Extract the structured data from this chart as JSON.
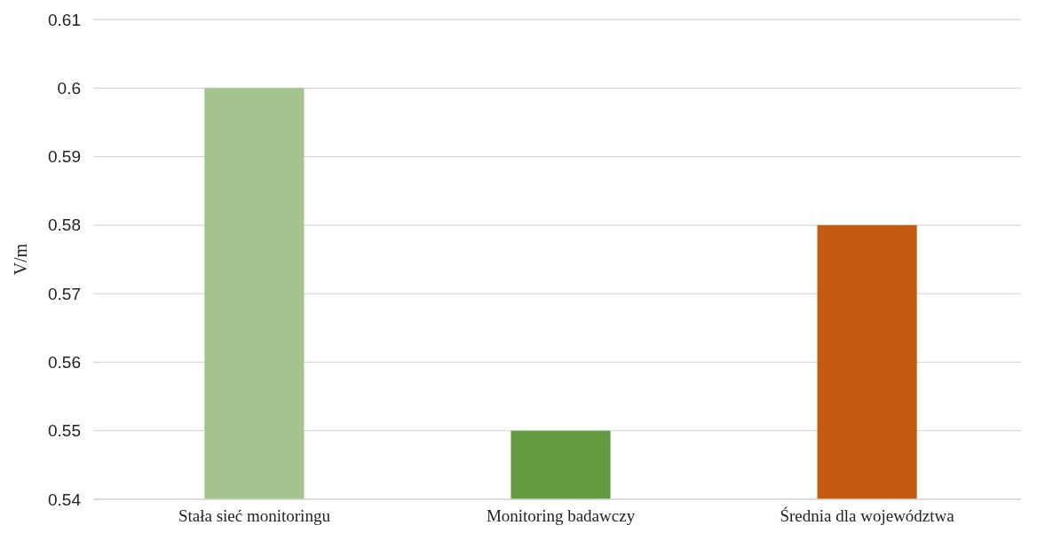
{
  "chart_data": {
    "type": "bar",
    "ylabel": "V/m",
    "categories": [
      "Stała sieć monitoringu",
      "Monitoring badawczy",
      "Średnia dla województwa"
    ],
    "values": [
      0.6,
      0.55,
      0.58
    ],
    "colors": [
      "#a3c48f",
      "#629b40",
      "#c55a11"
    ],
    "ylim": [
      0.54,
      0.61
    ],
    "yticks": [
      0.54,
      0.55,
      0.56,
      0.57,
      0.58,
      0.59,
      0.6,
      0.61
    ],
    "grid": "y"
  }
}
